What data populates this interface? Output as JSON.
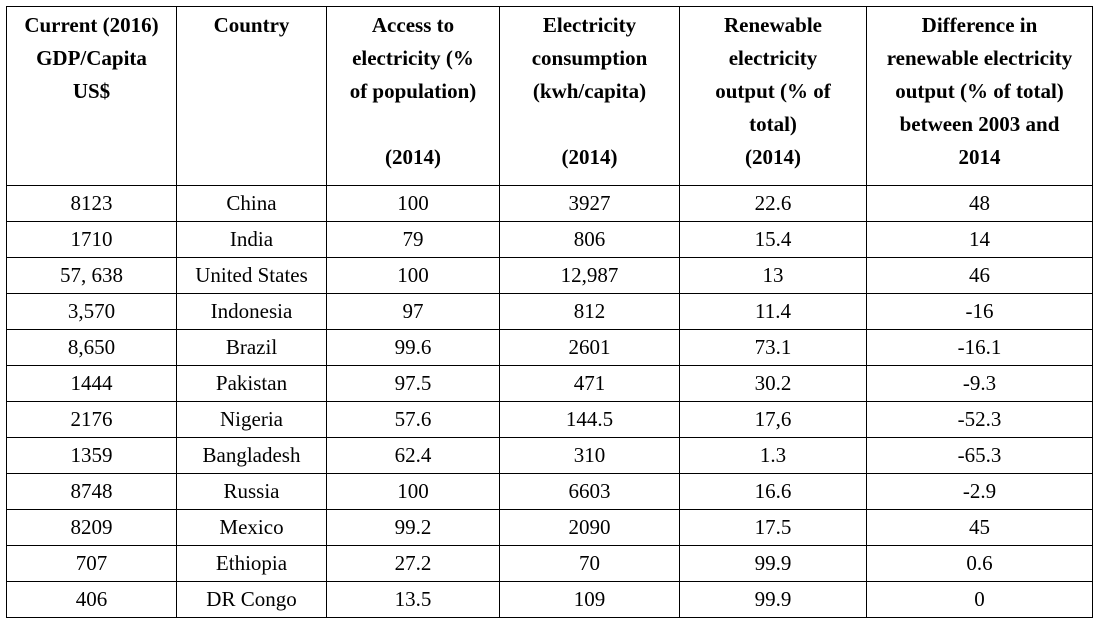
{
  "table": {
    "headers": [
      {
        "lines": [
          "Current (2016)",
          "GDP/Capita",
          "US$"
        ]
      },
      {
        "lines": [
          "Country"
        ]
      },
      {
        "lines": [
          "Access to",
          "electricity (%",
          "of population)",
          "",
          "(2014)"
        ]
      },
      {
        "lines": [
          "Electricity",
          "consumption",
          "(kwh/capita)",
          "",
          "(2014)"
        ]
      },
      {
        "lines": [
          "Renewable",
          "electricity",
          "output (% of",
          "total)",
          "(2014)"
        ]
      },
      {
        "lines": [
          "Difference in",
          "renewable electricity",
          "output (% of total)",
          "between 2003 and",
          "2014"
        ]
      }
    ],
    "rows": [
      [
        "8123",
        "China",
        "100",
        "3927",
        "22.6",
        "48"
      ],
      [
        "1710",
        "India",
        "79",
        "806",
        "15.4",
        "14"
      ],
      [
        "57, 638",
        "United States",
        "100",
        "12,987",
        "13",
        "46"
      ],
      [
        "3,570",
        "Indonesia",
        "97",
        "812",
        "11.4",
        "-16"
      ],
      [
        "8,650",
        "Brazil",
        "99.6",
        "2601",
        "73.1",
        "-16.1"
      ],
      [
        "1444",
        "Pakistan",
        "97.5",
        "471",
        "30.2",
        "-9.3"
      ],
      [
        "2176",
        "Nigeria",
        "57.6",
        "144.5",
        "17,6",
        "-52.3"
      ],
      [
        "1359",
        "Bangladesh",
        "62.4",
        "310",
        "1.3",
        "-65.3"
      ],
      [
        "8748",
        "Russia",
        "100",
        "6603",
        "16.6",
        "-2.9"
      ],
      [
        "8209",
        "Mexico",
        "99.2",
        "2090",
        "17.5",
        "45"
      ],
      [
        "707",
        "Ethiopia",
        "27.2",
        "70",
        "99.9",
        "0.6"
      ],
      [
        "406",
        "DR Congo",
        "13.5",
        "109",
        "99.9",
        "0"
      ]
    ]
  }
}
